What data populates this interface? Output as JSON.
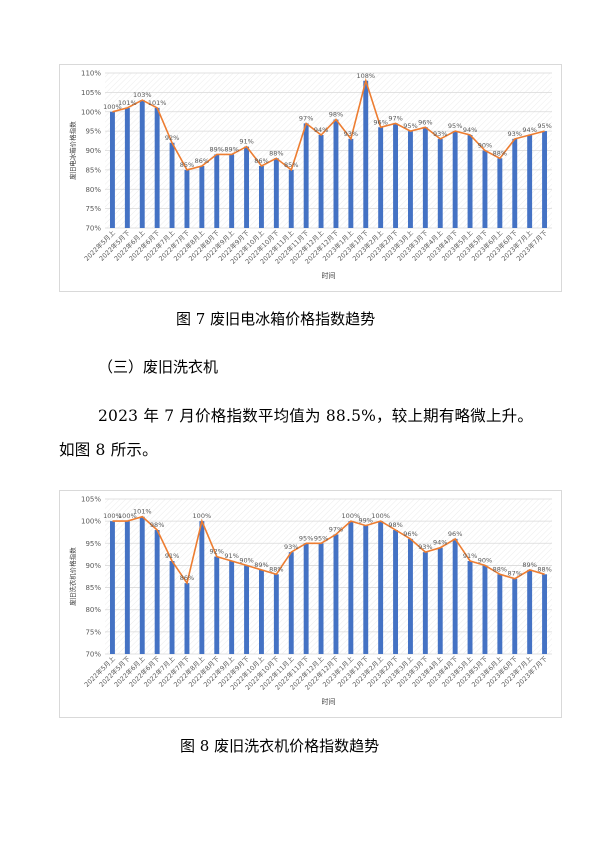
{
  "chart_data": [
    {
      "type": "bar",
      "ylabel": "废旧电冰箱价格指数",
      "xlabel": "时间",
      "ylim": [
        70,
        110
      ],
      "yticks": [
        "70%",
        "75%",
        "80%",
        "85%",
        "90%",
        "95%",
        "100%",
        "105%",
        "110%"
      ],
      "categories": [
        "2022年5月上",
        "2022年5月下",
        "2022年6月上",
        "2022年6月下",
        "2022年7月上",
        "2022年7月下",
        "2022年8月上",
        "2022年8月下",
        "2022年9月上",
        "2022年9月下",
        "2022年10月上",
        "2022年10月下",
        "2022年11月上",
        "2022年11月下",
        "2022年12月上",
        "2022年12月下",
        "2023年1月上",
        "2023年1月下",
        "2023年2月上",
        "2023年2月下",
        "2023年3月上",
        "2023年3月下",
        "2023年4月上",
        "2023年4月下",
        "2023年5月上",
        "2023年5月下",
        "2023年6月上",
        "2023年6月下",
        "2023年7月上",
        "2023年7月下"
      ],
      "values": [
        100,
        101,
        103,
        101,
        92,
        85,
        86,
        89,
        89,
        91,
        86,
        88,
        85,
        97,
        94,
        98,
        93,
        108,
        96,
        97,
        95,
        96,
        93,
        95,
        94,
        90,
        88,
        93,
        94,
        95
      ],
      "labels": [
        "100%",
        "101%",
        "103%",
        "101%",
        "92%",
        "85%",
        "86%",
        "89%",
        "89%",
        "91%",
        "86%",
        "88%",
        "85%",
        "97%",
        "94%",
        "98%",
        "93%",
        "108%",
        "96%",
        "97%",
        "95%",
        "96%",
        "93%",
        "95%",
        "94%",
        "90%",
        "88%",
        "93%",
        "94%",
        "95%"
      ],
      "grid": true
    },
    {
      "type": "bar",
      "ylabel": "废旧洗衣机价格指数",
      "xlabel": "时间",
      "ylim": [
        70,
        105
      ],
      "yticks": [
        "70%",
        "75%",
        "80%",
        "85%",
        "90%",
        "95%",
        "100%",
        "105%"
      ],
      "categories": [
        "2022年5月上",
        "2022年5月下",
        "2022年6月上",
        "2022年6月下",
        "2022年7月上",
        "2022年7月下",
        "2022年8月上",
        "2022年8月下",
        "2022年9月上",
        "2022年9月下",
        "2022年10月上",
        "2022年10月下",
        "2022年11月上",
        "2022年11月下",
        "2022年12月上",
        "2022年12月下",
        "2023年1月上",
        "2023年1月下",
        "2023年2月上",
        "2023年2月下",
        "2023年3月上",
        "2023年3月下",
        "2023年4月上",
        "2023年4月下",
        "2023年5月上",
        "2023年5月下",
        "2023年6月上",
        "2023年6月下",
        "2023年7月上",
        "2023年7月下"
      ],
      "values": [
        100,
        100,
        101,
        98,
        91,
        86,
        100,
        92,
        91,
        90,
        89,
        88,
        93,
        95,
        95,
        97,
        100,
        99,
        100,
        98,
        96,
        93,
        94,
        96,
        91,
        90,
        88,
        87,
        89,
        88
      ],
      "labels": [
        "100%",
        "100%",
        "101%",
        "98%",
        "91%",
        "86%",
        "100%",
        "92%",
        "91%",
        "90%",
        "89%",
        "88%",
        "93%",
        "95%",
        "95%",
        "97%",
        "100%",
        "99%",
        "100%",
        "98%",
        "96%",
        "93%",
        "94%",
        "96%",
        "91%",
        "90%",
        "88%",
        "87%",
        "89%",
        "88%"
      ],
      "grid": true
    }
  ],
  "colors": {
    "bar": "#4472C4",
    "line": "#ED7D31",
    "grid": "#d9d9d9",
    "text": "#595959"
  },
  "captions": {
    "fig7": "图 7  废旧电冰箱价格指数趋势",
    "fig8": "图 8  废旧洗衣机价格指数趋势"
  },
  "section": {
    "heading": "（三）废旧洗衣机"
  },
  "paragraph": {
    "line1": "2023 年 7 月价格指数平均值为 88.5%，较上期有略微上升。",
    "line2": "如图 8 所示。"
  }
}
